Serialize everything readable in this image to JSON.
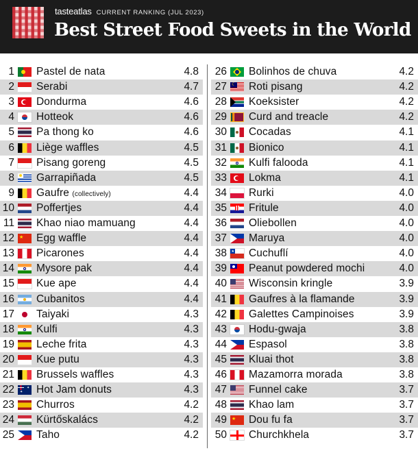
{
  "header": {
    "brand": "tasteatlas",
    "subtitle": "CURRENT RANKING (JUL 2023)",
    "title": "Best Street Food Sweets in the World"
  },
  "rows": [
    {
      "rank": "1",
      "name": "Pastel de nata",
      "score": "4.8",
      "flag": "portugal",
      "flag_colors": [
        "#0a7a2f",
        "#e21b1b"
      ]
    },
    {
      "rank": "2",
      "name": "Serabi",
      "score": "4.7",
      "flag": "indonesia",
      "flag_colors": [
        "#e21b1b",
        "#ffffff"
      ]
    },
    {
      "rank": "3",
      "name": "Dondurma",
      "score": "4.6",
      "flag": "turkey",
      "flag_colors": [
        "#e30a17",
        "#ffffff"
      ]
    },
    {
      "rank": "4",
      "name": "Hotteok",
      "score": "4.6",
      "flag": "south-korea",
      "flag_colors": [
        "#ffffff",
        "#cd2e3a",
        "#0047a0"
      ]
    },
    {
      "rank": "5",
      "name": "Pa thong ko",
      "score": "4.6",
      "flag": "thailand",
      "flag_colors": [
        "#a51931",
        "#f4f5f8",
        "#2d2a4a"
      ]
    },
    {
      "rank": "6",
      "name": "Liège waffles",
      "score": "4.5",
      "flag": "belgium",
      "flag_colors": [
        "#000000",
        "#fdda24",
        "#ef3340"
      ]
    },
    {
      "rank": "7",
      "name": "Pisang goreng",
      "score": "4.5",
      "flag": "indonesia",
      "flag_colors": [
        "#e21b1b",
        "#ffffff"
      ]
    },
    {
      "rank": "8",
      "name": "Garrapiñada",
      "score": "4.5",
      "flag": "uruguay",
      "flag_colors": [
        "#ffffff",
        "#0038a8",
        "#fcd116"
      ]
    },
    {
      "rank": "9",
      "name": "Gaufre",
      "note": "(collectively)",
      "score": "4.4",
      "flag": "belgium",
      "flag_colors": [
        "#000000",
        "#fdda24",
        "#ef3340"
      ]
    },
    {
      "rank": "10",
      "name": "Poffertjes",
      "score": "4.4",
      "flag": "netherlands",
      "flag_colors": [
        "#ae1c28",
        "#ffffff",
        "#21468b"
      ]
    },
    {
      "rank": "11",
      "name": "Khao niao mamuang",
      "score": "4.4",
      "flag": "thailand",
      "flag_colors": [
        "#a51931",
        "#f4f5f8",
        "#2d2a4a"
      ]
    },
    {
      "rank": "12",
      "name": "Egg waffle",
      "score": "4.4",
      "flag": "china",
      "flag_colors": [
        "#de2910",
        "#ffde00"
      ]
    },
    {
      "rank": "13",
      "name": "Picarones",
      "score": "4.4",
      "flag": "peru",
      "flag_colors": [
        "#d91023",
        "#ffffff",
        "#d91023"
      ]
    },
    {
      "rank": "14",
      "name": "Mysore pak",
      "score": "4.4",
      "flag": "india",
      "flag_colors": [
        "#ff9933",
        "#ffffff",
        "#138808"
      ]
    },
    {
      "rank": "15",
      "name": "Kue ape",
      "score": "4.4",
      "flag": "indonesia",
      "flag_colors": [
        "#e21b1b",
        "#ffffff"
      ]
    },
    {
      "rank": "16",
      "name": "Cubanitos",
      "score": "4.4",
      "flag": "argentina",
      "flag_colors": [
        "#74acdf",
        "#ffffff",
        "#74acdf"
      ]
    },
    {
      "rank": "17",
      "name": "Taiyaki",
      "score": "4.3",
      "flag": "japan",
      "flag_colors": [
        "#ffffff",
        "#bc002d"
      ]
    },
    {
      "rank": "18",
      "name": "Kulfi",
      "score": "4.3",
      "flag": "india",
      "flag_colors": [
        "#ff9933",
        "#ffffff",
        "#138808"
      ]
    },
    {
      "rank": "19",
      "name": "Leche frita",
      "score": "4.3",
      "flag": "spain",
      "flag_colors": [
        "#aa151b",
        "#f1bf00",
        "#aa151b"
      ]
    },
    {
      "rank": "20",
      "name": "Kue putu",
      "score": "4.3",
      "flag": "indonesia",
      "flag_colors": [
        "#e21b1b",
        "#ffffff"
      ]
    },
    {
      "rank": "21",
      "name": "Brussels waffles",
      "score": "4.3",
      "flag": "belgium",
      "flag_colors": [
        "#000000",
        "#fdda24",
        "#ef3340"
      ]
    },
    {
      "rank": "22",
      "name": "Hot Jam donuts",
      "score": "4.3",
      "flag": "australia",
      "flag_colors": [
        "#012169",
        "#ffffff",
        "#e4002b"
      ]
    },
    {
      "rank": "23",
      "name": "Churros",
      "score": "4.2",
      "flag": "spain",
      "flag_colors": [
        "#aa151b",
        "#f1bf00",
        "#aa151b"
      ]
    },
    {
      "rank": "24",
      "name": "Kürtőskalács",
      "score": "4.2",
      "flag": "hungary",
      "flag_colors": [
        "#ce2939",
        "#ffffff",
        "#477050"
      ]
    },
    {
      "rank": "25",
      "name": "Taho",
      "score": "4.2",
      "flag": "philippines",
      "flag_colors": [
        "#0038a8",
        "#ce1126",
        "#ffffff"
      ]
    },
    {
      "rank": "26",
      "name": "Bolinhos de chuva",
      "score": "4.2",
      "flag": "brazil",
      "flag_colors": [
        "#009c3b",
        "#ffdf00",
        "#002776"
      ]
    },
    {
      "rank": "27",
      "name": "Roti pisang",
      "score": "4.2",
      "flag": "malaysia",
      "flag_colors": [
        "#cc0001",
        "#ffffff",
        "#010066"
      ]
    },
    {
      "rank": "28",
      "name": "Koeksister",
      "score": "4.2",
      "flag": "south-africa",
      "flag_colors": [
        "#007a4d",
        "#de3831",
        "#002395"
      ]
    },
    {
      "rank": "29",
      "name": "Curd and treacle",
      "score": "4.2",
      "flag": "sri-lanka",
      "flag_colors": [
        "#8d153a",
        "#ffbe29",
        "#00534e"
      ]
    },
    {
      "rank": "30",
      "name": "Cocadas",
      "score": "4.1",
      "flag": "mexico",
      "flag_colors": [
        "#006847",
        "#ffffff",
        "#ce1126"
      ]
    },
    {
      "rank": "31",
      "name": "Bionico",
      "score": "4.1",
      "flag": "mexico",
      "flag_colors": [
        "#006847",
        "#ffffff",
        "#ce1126"
      ]
    },
    {
      "rank": "32",
      "name": "Kulfi falooda",
      "score": "4.1",
      "flag": "india",
      "flag_colors": [
        "#ff9933",
        "#ffffff",
        "#138808"
      ]
    },
    {
      "rank": "33",
      "name": "Lokma",
      "score": "4.1",
      "flag": "turkey",
      "flag_colors": [
        "#e30a17",
        "#ffffff"
      ]
    },
    {
      "rank": "34",
      "name": "Rurki",
      "score": "4.0",
      "flag": "poland",
      "flag_colors": [
        "#ffffff",
        "#dc143c"
      ]
    },
    {
      "rank": "35",
      "name": "Fritule",
      "score": "4.0",
      "flag": "croatia",
      "flag_colors": [
        "#ff0000",
        "#ffffff",
        "#171796"
      ]
    },
    {
      "rank": "36",
      "name": "Oliebollen",
      "score": "4.0",
      "flag": "netherlands",
      "flag_colors": [
        "#ae1c28",
        "#ffffff",
        "#21468b"
      ]
    },
    {
      "rank": "37",
      "name": "Maruya",
      "score": "4.0",
      "flag": "philippines",
      "flag_colors": [
        "#0038a8",
        "#ce1126",
        "#ffffff"
      ]
    },
    {
      "rank": "38",
      "name": "Cuchuflí",
      "score": "4.0",
      "flag": "chile",
      "flag_colors": [
        "#0039a6",
        "#ffffff",
        "#d52b1e"
      ]
    },
    {
      "rank": "39",
      "name": "Peanut powdered mochi",
      "score": "4.0",
      "flag": "taiwan",
      "flag_colors": [
        "#fe0000",
        "#000095",
        "#ffffff"
      ]
    },
    {
      "rank": "40",
      "name": "Wisconsin kringle",
      "score": "3.9",
      "flag": "usa",
      "flag_colors": [
        "#b22234",
        "#ffffff",
        "#3c3b6e"
      ]
    },
    {
      "rank": "41",
      "name": "Gaufres à la flamande",
      "score": "3.9",
      "flag": "belgium",
      "flag_colors": [
        "#000000",
        "#fdda24",
        "#ef3340"
      ]
    },
    {
      "rank": "42",
      "name": "Galettes Campinoises",
      "score": "3.9",
      "flag": "belgium",
      "flag_colors": [
        "#000000",
        "#fdda24",
        "#ef3340"
      ]
    },
    {
      "rank": "43",
      "name": "Hodu-gwaja",
      "score": "3.8",
      "flag": "south-korea",
      "flag_colors": [
        "#ffffff",
        "#cd2e3a",
        "#0047a0"
      ]
    },
    {
      "rank": "44",
      "name": "Espasol",
      "score": "3.8",
      "flag": "philippines",
      "flag_colors": [
        "#0038a8",
        "#ce1126",
        "#ffffff"
      ]
    },
    {
      "rank": "45",
      "name": "Kluai thot",
      "score": "3.8",
      "flag": "thailand",
      "flag_colors": [
        "#a51931",
        "#f4f5f8",
        "#2d2a4a"
      ]
    },
    {
      "rank": "46",
      "name": "Mazamorra morada",
      "score": "3.8",
      "flag": "peru",
      "flag_colors": [
        "#d91023",
        "#ffffff",
        "#d91023"
      ]
    },
    {
      "rank": "47",
      "name": "Funnel cake",
      "score": "3.7",
      "flag": "usa",
      "flag_colors": [
        "#b22234",
        "#ffffff",
        "#3c3b6e"
      ]
    },
    {
      "rank": "48",
      "name": "Khao lam",
      "score": "3.7",
      "flag": "thailand",
      "flag_colors": [
        "#a51931",
        "#f4f5f8",
        "#2d2a4a"
      ]
    },
    {
      "rank": "49",
      "name": "Dou fu fa",
      "score": "3.7",
      "flag": "china",
      "flag_colors": [
        "#de2910",
        "#ffde00"
      ]
    },
    {
      "rank": "50",
      "name": "Churchkhela",
      "score": "3.7",
      "flag": "georgia",
      "flag_colors": [
        "#ffffff",
        "#ff0000"
      ]
    }
  ]
}
